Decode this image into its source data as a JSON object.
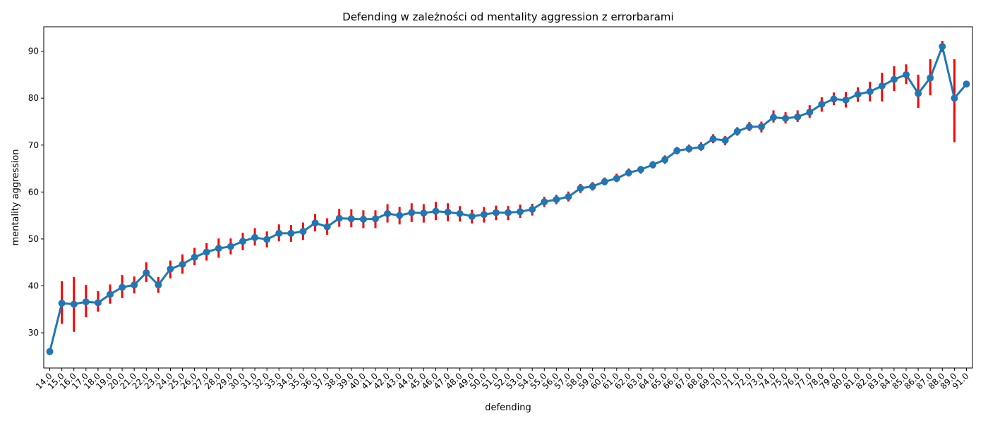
{
  "chart_data": {
    "type": "line",
    "title": "Defending w zależności od mentality aggression z errorbarami",
    "xlabel": "defending",
    "ylabel": "mentality aggression",
    "ylim": [
      22.5,
      95.2
    ],
    "y_ticks": [
      30,
      40,
      50,
      60,
      70,
      80,
      90
    ],
    "grid": false,
    "legend": "none",
    "line_color": "#1f77b4",
    "errorbar_color": "#ff0000",
    "categories": [
      "14.0",
      "15.0",
      "16.0",
      "17.0",
      "18.0",
      "19.0",
      "20.0",
      "21.0",
      "22.0",
      "23.0",
      "24.0",
      "25.0",
      "26.0",
      "27.0",
      "28.0",
      "29.0",
      "30.0",
      "31.0",
      "32.0",
      "33.0",
      "34.0",
      "35.0",
      "36.0",
      "37.0",
      "38.0",
      "39.0",
      "40.0",
      "41.0",
      "42.0",
      "43.0",
      "44.0",
      "45.0",
      "46.0",
      "47.0",
      "48.0",
      "49.0",
      "50.0",
      "51.0",
      "52.0",
      "53.0",
      "54.0",
      "55.0",
      "56.0",
      "57.0",
      "58.0",
      "59.0",
      "60.0",
      "61.0",
      "62.0",
      "63.0",
      "64.0",
      "65.0",
      "66.0",
      "67.0",
      "68.0",
      "69.0",
      "70.0",
      "71.0",
      "72.0",
      "73.0",
      "74.0",
      "75.0",
      "76.0",
      "77.0",
      "78.0",
      "79.0",
      "80.0",
      "81.0",
      "82.0",
      "83.0",
      "84.0",
      "85.0",
      "86.0",
      "87.0",
      "88.0",
      "89.0",
      "91.0"
    ],
    "values": [
      26.0,
      36.3,
      36.1,
      36.6,
      36.4,
      38.2,
      39.7,
      40.2,
      42.8,
      40.2,
      43.6,
      44.6,
      46.1,
      47.2,
      48.0,
      48.4,
      49.5,
      50.3,
      49.9,
      51.2,
      51.2,
      51.6,
      53.4,
      52.6,
      54.4,
      54.3,
      54.2,
      54.3,
      55.4,
      55.0,
      55.6,
      55.5,
      55.9,
      55.7,
      55.4,
      54.8,
      55.2,
      55.6,
      55.6,
      55.8,
      56.3,
      57.9,
      58.4,
      59.0,
      60.8,
      61.2,
      62.2,
      62.9,
      64.1,
      64.8,
      65.8,
      66.9,
      68.8,
      69.2,
      69.6,
      71.3,
      71.0,
      72.9,
      73.9,
      73.9,
      75.9,
      75.7,
      76.0,
      77.0,
      78.7,
      79.8,
      79.6,
      80.8,
      81.4,
      82.6,
      84.0,
      85.0,
      81.0,
      84.3,
      91.0,
      80.0,
      83.0
    ],
    "ci_low": [
      null,
      31.9,
      30.2,
      33.3,
      34.5,
      36.2,
      37.4,
      38.4,
      40.8,
      38.5,
      41.6,
      42.6,
      44.4,
      45.4,
      46.0,
      46.7,
      47.6,
      48.6,
      48.2,
      49.5,
      49.4,
      49.8,
      51.6,
      50.9,
      52.6,
      52.5,
      52.3,
      52.3,
      53.5,
      53.1,
      53.6,
      53.5,
      54.0,
      53.8,
      53.7,
      53.3,
      53.5,
      54.0,
      54.0,
      54.5,
      55.0,
      56.8,
      57.4,
      58.0,
      59.8,
      60.3,
      61.4,
      62.1,
      63.3,
      63.9,
      65.0,
      66.0,
      68.0,
      68.4,
      68.8,
      70.4,
      70.0,
      72.0,
      73.0,
      72.7,
      74.8,
      74.6,
      74.9,
      75.8,
      77.1,
      78.5,
      78.0,
      79.2,
      79.3,
      79.3,
      81.5,
      83.0,
      77.9,
      80.6,
      89.8,
      70.6,
      null
    ],
    "ci_high": [
      null,
      41.0,
      41.9,
      40.2,
      38.9,
      40.3,
      42.3,
      42.0,
      45.0,
      41.9,
      45.4,
      46.7,
      48.1,
      49.1,
      50.1,
      50.1,
      51.3,
      52.3,
      51.6,
      53.1,
      53.0,
      53.5,
      55.3,
      54.4,
      56.4,
      56.3,
      56.1,
      56.1,
      57.4,
      56.8,
      57.6,
      57.4,
      57.9,
      57.6,
      57.0,
      56.2,
      56.8,
      57.1,
      57.0,
      57.3,
      57.5,
      59.0,
      59.4,
      60.1,
      61.7,
      62.1,
      63.1,
      63.9,
      65.0,
      65.5,
      66.6,
      67.8,
      69.6,
      70.1,
      70.6,
      72.3,
      71.9,
      73.8,
      74.9,
      75.0,
      77.4,
      77.0,
      77.4,
      78.5,
      80.2,
      81.2,
      81.3,
      82.3,
      83.5,
      85.4,
      86.8,
      87.2,
      85.0,
      88.3,
      92.2,
      88.3,
      null
    ]
  }
}
